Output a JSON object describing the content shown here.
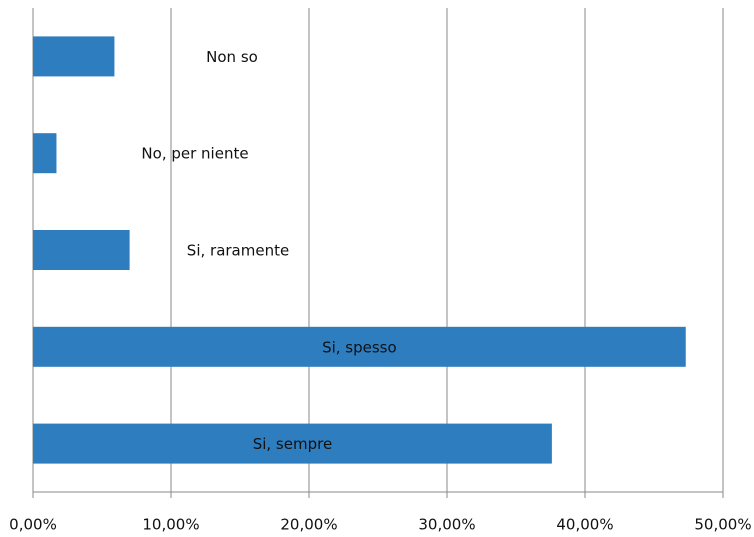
{
  "chart_data": {
    "type": "bar",
    "orientation": "horizontal",
    "categories": [
      "Non so",
      "No, per niente",
      "Si, raramente",
      "Si, spesso",
      "Si, sempre"
    ],
    "values": [
      5.9,
      1.7,
      7.0,
      47.3,
      37.6
    ],
    "color": "#2e7dbf",
    "xlim": [
      0,
      50
    ],
    "xticks": [
      {
        "value": 0,
        "label": "0,00%"
      },
      {
        "value": 10,
        "label": "10,00%"
      },
      {
        "value": 20,
        "label": "20,00%"
      },
      {
        "value": 30,
        "label": "30,00%"
      },
      {
        "value": 40,
        "label": "40,00%"
      },
      {
        "value": 50,
        "label": "50,00%"
      }
    ],
    "grid": true
  }
}
